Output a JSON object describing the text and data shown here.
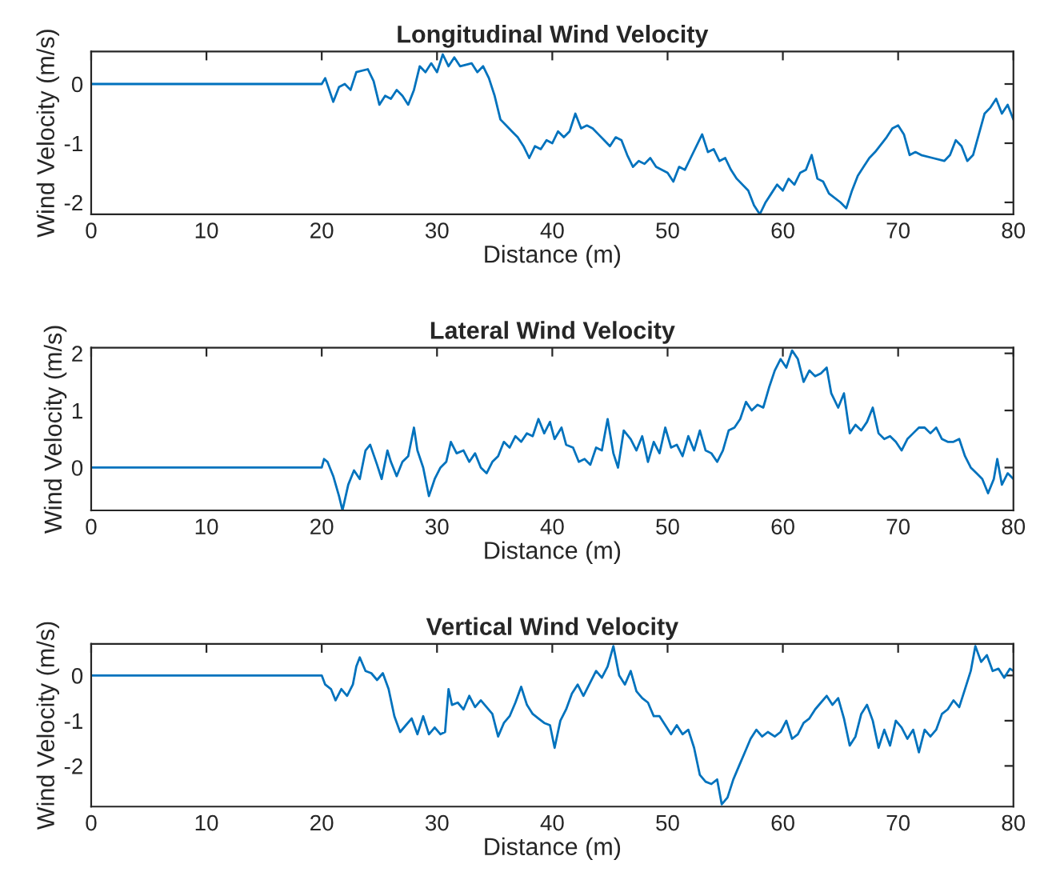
{
  "chart_data": [
    {
      "type": "line",
      "title": "Longitudinal Wind Velocity",
      "xlabel": "Distance (m)",
      "ylabel": "Wind Velocity (m/s)",
      "xlim": [
        0,
        80
      ],
      "xticks": [
        0,
        10,
        20,
        30,
        40,
        50,
        60,
        70,
        80
      ],
      "ylim": [
        -2.2,
        0.55
      ],
      "yticks": [
        -2,
        -1,
        0
      ],
      "grid": false,
      "series": [
        {
          "color": "#0072bd",
          "x": [
            0,
            20,
            20.3,
            21,
            21.5,
            22,
            22.5,
            23,
            24,
            24.5,
            25,
            25.5,
            26,
            26.5,
            27,
            27.5,
            28,
            28.5,
            29,
            29.5,
            30,
            30.5,
            31,
            31.5,
            32,
            33,
            33.5,
            34,
            34.5,
            35,
            35.5,
            36,
            36.5,
            37,
            37.5,
            38,
            38.5,
            39,
            39.5,
            40,
            40.5,
            41,
            41.5,
            42,
            42.5,
            43,
            43.5,
            44,
            44.5,
            45,
            45.5,
            46,
            46.5,
            47,
            47.5,
            48,
            48.5,
            49,
            50,
            50.5,
            51,
            51.5,
            52,
            53,
            53.5,
            54,
            54.5,
            55,
            55.5,
            56,
            57,
            57.5,
            58,
            58.5,
            59,
            59.5,
            60,
            60.5,
            61,
            61.5,
            62,
            62.5,
            63,
            63.5,
            64,
            65,
            65.5,
            66,
            66.5,
            67,
            67.5,
            68,
            69,
            69.5,
            70,
            70.5,
            71,
            71.5,
            72,
            73,
            74,
            74.5,
            75,
            75.5,
            76,
            76.5,
            77,
            77.5,
            78,
            78.5,
            79,
            79.5,
            80
          ],
          "values": [
            0,
            0,
            0.1,
            -0.3,
            -0.05,
            0,
            -0.1,
            0.2,
            0.25,
            0.05,
            -0.35,
            -0.2,
            -0.25,
            -0.1,
            -0.2,
            -0.35,
            -0.1,
            0.3,
            0.2,
            0.35,
            0.2,
            0.5,
            0.3,
            0.45,
            0.3,
            0.35,
            0.2,
            0.3,
            0.1,
            -0.2,
            -0.6,
            -0.7,
            -0.8,
            -0.9,
            -1.05,
            -1.25,
            -1.05,
            -1.1,
            -0.95,
            -1.0,
            -0.8,
            -0.9,
            -0.8,
            -0.5,
            -0.75,
            -0.7,
            -0.75,
            -0.85,
            -0.95,
            -1.05,
            -0.9,
            -0.95,
            -1.2,
            -1.4,
            -1.3,
            -1.35,
            -1.25,
            -1.4,
            -1.5,
            -1.65,
            -1.4,
            -1.45,
            -1.25,
            -0.85,
            -1.15,
            -1.1,
            -1.3,
            -1.25,
            -1.45,
            -1.6,
            -1.8,
            -2.05,
            -2.2,
            -2.0,
            -1.85,
            -1.7,
            -1.8,
            -1.6,
            -1.7,
            -1.5,
            -1.45,
            -1.2,
            -1.6,
            -1.65,
            -1.85,
            -2.0,
            -2.1,
            -1.8,
            -1.55,
            -1.4,
            -1.25,
            -1.15,
            -0.9,
            -0.75,
            -0.7,
            -0.85,
            -1.2,
            -1.15,
            -1.2,
            -1.25,
            -1.3,
            -1.2,
            -0.95,
            -1.05,
            -1.3,
            -1.2,
            -0.85,
            -0.5,
            -0.4,
            -0.25,
            -0.5,
            -0.35,
            -0.6
          ]
        }
      ]
    },
    {
      "type": "line",
      "title": "Lateral Wind Velocity",
      "xlabel": "Distance (m)",
      "ylabel": "Wind Velocity (m/s)",
      "xlim": [
        0,
        80
      ],
      "xticks": [
        0,
        10,
        20,
        30,
        40,
        50,
        60,
        70,
        80
      ],
      "ylim": [
        -0.75,
        2.1
      ],
      "yticks": [
        0,
        1,
        2
      ],
      "grid": false,
      "series": [
        {
          "color": "#0072bd",
          "x": [
            0,
            20,
            20.2,
            20.5,
            21,
            21.5,
            21.8,
            22.3,
            22.8,
            23.3,
            23.8,
            24.2,
            24.8,
            25.2,
            25.7,
            26,
            26.5,
            27,
            27.5,
            28,
            28.3,
            28.8,
            29.3,
            29.8,
            30.3,
            30.8,
            31.2,
            31.7,
            32.3,
            32.8,
            33.3,
            33.8,
            34.3,
            34.8,
            35.3,
            35.8,
            36.3,
            36.8,
            37.3,
            37.8,
            38.3,
            38.8,
            39.3,
            39.8,
            40.2,
            40.8,
            41.2,
            41.8,
            42.3,
            42.8,
            43.3,
            43.8,
            44.3,
            44.8,
            45.3,
            45.7,
            46.2,
            46.8,
            47.3,
            47.8,
            48.3,
            48.8,
            49.3,
            49.8,
            50.3,
            50.8,
            51.3,
            51.8,
            52.3,
            52.8,
            53.3,
            53.8,
            54.3,
            54.8,
            55.3,
            55.8,
            56.3,
            56.8,
            57.3,
            57.8,
            58.3,
            58.8,
            59.3,
            59.8,
            60.3,
            60.8,
            61.3,
            61.8,
            62.3,
            62.8,
            63.3,
            63.8,
            64.2,
            64.8,
            65.3,
            65.8,
            66.3,
            66.8,
            67.3,
            67.8,
            68.3,
            68.8,
            69.3,
            69.8,
            70.3,
            70.8,
            71.3,
            71.8,
            72.3,
            72.8,
            73.3,
            73.8,
            74.3,
            74.8,
            75.3,
            75.8,
            76.3,
            76.8,
            77.3,
            77.8,
            78.3,
            78.6,
            79,
            79.5,
            80
          ],
          "values": [
            0,
            0,
            0.15,
            0.1,
            -0.15,
            -0.5,
            -0.75,
            -0.3,
            -0.05,
            -0.2,
            0.3,
            0.4,
            0.05,
            -0.2,
            0.3,
            0.1,
            -0.15,
            0.1,
            0.2,
            0.7,
            0.3,
            0.0,
            -0.5,
            -0.2,
            0,
            0.1,
            0.45,
            0.25,
            0.3,
            0.1,
            0.25,
            0,
            -0.1,
            0.1,
            0.2,
            0.45,
            0.35,
            0.55,
            0.45,
            0.6,
            0.55,
            0.85,
            0.6,
            0.8,
            0.5,
            0.7,
            0.4,
            0.35,
            0.1,
            0.15,
            0.05,
            0.35,
            0.3,
            0.85,
            0.25,
            0.0,
            0.65,
            0.5,
            0.3,
            0.55,
            0.1,
            0.45,
            0.25,
            0.7,
            0.35,
            0.4,
            0.2,
            0.55,
            0.3,
            0.65,
            0.3,
            0.25,
            0.1,
            0.3,
            0.65,
            0.7,
            0.85,
            1.15,
            1.0,
            1.1,
            1.05,
            1.4,
            1.7,
            1.9,
            1.75,
            2.05,
            1.9,
            1.5,
            1.7,
            1.6,
            1.65,
            1.75,
            1.3,
            1.05,
            1.3,
            0.6,
            0.75,
            0.65,
            0.8,
            1.05,
            0.6,
            0.5,
            0.55,
            0.45,
            0.3,
            0.5,
            0.6,
            0.7,
            0.7,
            0.6,
            0.7,
            0.5,
            0.45,
            0.45,
            0.5,
            0.2,
            0,
            -0.1,
            -0.2,
            -0.45,
            -0.2,
            0.15,
            -0.3,
            -0.1,
            -0.2
          ]
        }
      ]
    },
    {
      "type": "line",
      "title": "Vertical Wind Velocity",
      "xlabel": "Distance (m)",
      "ylabel": "Wind Velocity (m/s)",
      "xlim": [
        0,
        80
      ],
      "xticks": [
        0,
        10,
        20,
        30,
        40,
        50,
        60,
        70,
        80
      ],
      "ylim": [
        -2.9,
        0.7
      ],
      "yticks": [
        -2,
        -1,
        0
      ],
      "grid": false,
      "series": [
        {
          "color": "#0072bd",
          "x": [
            0,
            20,
            20.3,
            20.8,
            21.2,
            21.7,
            22.2,
            22.7,
            23.0,
            23.3,
            23.8,
            24.3,
            24.8,
            25.3,
            25.8,
            26.3,
            26.8,
            27.3,
            27.8,
            28.3,
            28.8,
            29.3,
            29.8,
            30.3,
            30.7,
            31.0,
            31.3,
            31.8,
            32.3,
            32.8,
            33.3,
            33.8,
            34.3,
            34.8,
            35.3,
            35.8,
            36.3,
            36.8,
            37.3,
            37.8,
            38.3,
            38.8,
            39.3,
            39.8,
            40.2,
            40.7,
            41.2,
            41.7,
            42.2,
            42.7,
            43.3,
            43.8,
            44.3,
            44.8,
            45.3,
            45.8,
            46.3,
            46.8,
            47.3,
            47.8,
            48.3,
            48.8,
            49.3,
            49.8,
            50.3,
            50.8,
            51.3,
            51.8,
            52.3,
            52.8,
            53.3,
            53.8,
            54.3,
            54.7,
            55.2,
            55.7,
            56.2,
            56.7,
            57.2,
            57.7,
            58.2,
            58.7,
            59.3,
            59.8,
            60.3,
            60.8,
            61.3,
            61.8,
            62.3,
            62.8,
            63.3,
            63.8,
            64.3,
            64.8,
            65.3,
            65.8,
            66.3,
            66.8,
            67.3,
            67.8,
            68.3,
            68.8,
            69.3,
            69.8,
            70.3,
            70.8,
            71.3,
            71.8,
            72.3,
            72.8,
            73.3,
            73.8,
            74.3,
            74.8,
            75.3,
            75.8,
            76.3,
            76.7,
            77.2,
            77.7,
            78.2,
            78.7,
            79.2,
            79.7,
            80
          ],
          "values": [
            0,
            0,
            -0.2,
            -0.3,
            -0.55,
            -0.3,
            -0.45,
            -0.2,
            0.2,
            0.4,
            0.1,
            0.05,
            -0.1,
            0.05,
            -0.3,
            -0.9,
            -1.25,
            -1.1,
            -0.95,
            -1.3,
            -0.9,
            -1.3,
            -1.15,
            -1.3,
            -1.25,
            -0.3,
            -0.65,
            -0.6,
            -0.75,
            -0.45,
            -0.7,
            -0.55,
            -0.7,
            -0.85,
            -1.35,
            -1.05,
            -0.9,
            -0.6,
            -0.25,
            -0.65,
            -0.85,
            -0.95,
            -1.05,
            -1.1,
            -1.6,
            -1.0,
            -0.75,
            -0.4,
            -0.2,
            -0.45,
            -0.15,
            0.1,
            -0.05,
            0.2,
            0.65,
            0.0,
            -0.2,
            0.1,
            -0.35,
            -0.5,
            -0.6,
            -0.9,
            -0.9,
            -1.1,
            -1.3,
            -1.1,
            -1.3,
            -1.2,
            -1.6,
            -2.2,
            -2.35,
            -2.4,
            -2.3,
            -2.85,
            -2.7,
            -2.3,
            -2.0,
            -1.7,
            -1.4,
            -1.2,
            -1.35,
            -1.25,
            -1.35,
            -1.25,
            -1.0,
            -1.4,
            -1.3,
            -1.05,
            -0.95,
            -0.75,
            -0.6,
            -0.45,
            -0.65,
            -0.5,
            -0.95,
            -1.55,
            -1.35,
            -0.85,
            -0.65,
            -1.0,
            -1.6,
            -1.2,
            -1.55,
            -1.0,
            -1.15,
            -1.4,
            -1.2,
            -1.7,
            -1.2,
            -1.35,
            -1.2,
            -0.85,
            -0.75,
            -0.55,
            -0.7,
            -0.3,
            0.1,
            0.65,
            0.3,
            0.45,
            0.1,
            0.15,
            -0.05,
            0.15,
            0.1
          ]
        }
      ]
    }
  ]
}
